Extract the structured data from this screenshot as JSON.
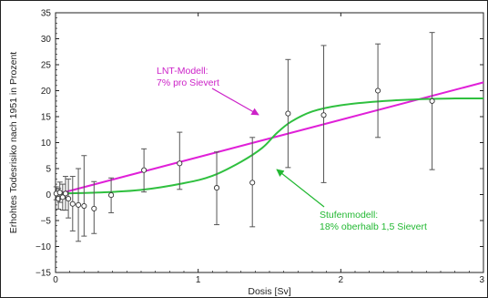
{
  "chart_data": {
    "type": "scatter",
    "xlabel": "Dosis [Sv]",
    "ylabel": "Erhohtes Todesrisiko nach 1951 in Prozent",
    "xlim": [
      0,
      3
    ],
    "ylim": [
      -15,
      35
    ],
    "x_ticks": [
      0,
      1,
      2,
      3
    ],
    "y_ticks": [
      -15,
      -10,
      -5,
      0,
      5,
      10,
      15,
      20,
      25,
      30,
      35
    ],
    "grid": false,
    "points": [
      {
        "x": 0.005,
        "y": 0.2,
        "low": -1.0,
        "high": 1.5
      },
      {
        "x": 0.02,
        "y": -0.8,
        "low": -2.8,
        "high": 1.2
      },
      {
        "x": 0.03,
        "y": 0.4,
        "low": -1.5,
        "high": 2.4
      },
      {
        "x": 0.05,
        "y": -0.5,
        "low": -3.0,
        "high": 2.0
      },
      {
        "x": 0.07,
        "y": 0.2,
        "low": -3.0,
        "high": 3.5
      },
      {
        "x": 0.09,
        "y": -0.8,
        "low": -4.5,
        "high": 3.0
      },
      {
        "x": 0.12,
        "y": -1.8,
        "low": -7.0,
        "high": 3.5
      },
      {
        "x": 0.16,
        "y": -2.0,
        "low": -9.0,
        "high": 5.0
      },
      {
        "x": 0.2,
        "y": -2.2,
        "low": -8.0,
        "high": 7.5
      },
      {
        "x": 0.27,
        "y": -2.7,
        "low": -7.5,
        "high": 2.5
      },
      {
        "x": 0.39,
        "y": -0.1,
        "low": -3.5,
        "high": 3.2
      },
      {
        "x": 0.62,
        "y": 4.7,
        "low": 0.5,
        "high": 8.8
      },
      {
        "x": 0.87,
        "y": 6.0,
        "low": 1.0,
        "high": 12.0
      },
      {
        "x": 1.13,
        "y": 1.3,
        "low": -5.8,
        "high": 8.2
      },
      {
        "x": 1.38,
        "y": 2.3,
        "low": -6.2,
        "high": 11.0
      },
      {
        "x": 1.63,
        "y": 15.6,
        "low": 5.2,
        "high": 26.0
      },
      {
        "x": 1.88,
        "y": 15.3,
        "low": 2.3,
        "high": 28.7
      },
      {
        "x": 2.26,
        "y": 20.0,
        "low": 11.0,
        "high": 29.0
      },
      {
        "x": 2.64,
        "y": 18.0,
        "low": 4.8,
        "high": 31.2
      }
    ],
    "lines": [
      {
        "name": "lnt",
        "color": "#e020d8",
        "x": [
          0,
          3
        ],
        "y": [
          0,
          21.6
        ]
      },
      {
        "name": "step",
        "color": "#2fc03f",
        "x": [
          0,
          0.3,
          0.6,
          0.9,
          1.1,
          1.3,
          1.45,
          1.55,
          1.65,
          1.8,
          2.0,
          2.3,
          2.6,
          2.8,
          3.0
        ],
        "y": [
          0.2,
          0.4,
          0.9,
          2.2,
          3.6,
          6.3,
          9.0,
          11.8,
          14.0,
          16.0,
          17.2,
          18.0,
          18.4,
          18.5,
          18.5
        ]
      }
    ],
    "annotations": [
      {
        "id": "lnt",
        "lines": [
          "LNT-Modell:",
          "7% pro Sievert"
        ],
        "color": "#cc22c8"
      },
      {
        "id": "step",
        "lines": [
          "Stufenmodell:",
          "18% oberhalb 1,5 Sievert"
        ],
        "color": "#22b832"
      }
    ]
  }
}
